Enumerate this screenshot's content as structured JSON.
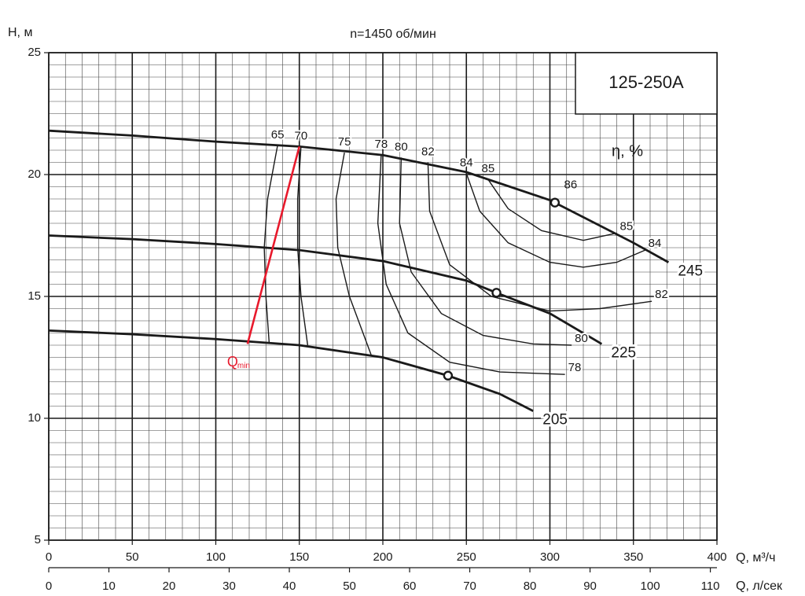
{
  "chart_data": {
    "type": "line",
    "title": "n=1450 об/мин",
    "model": "125-250А",
    "ylabel": "H, м",
    "xlabel": "Q, м³/ч",
    "x2label": "Q, л/сек",
    "efficiency_label": "η, %",
    "xlim": [
      0,
      400
    ],
    "xticks": [
      0,
      50,
      100,
      150,
      200,
      250,
      300,
      350,
      400
    ],
    "x2lim": [
      0,
      111.1
    ],
    "x2ticks": [
      0,
      10,
      20,
      30,
      40,
      50,
      60,
      70,
      80,
      90,
      100,
      110
    ],
    "ylim": [
      5,
      25
    ],
    "yticks": [
      5,
      10,
      15,
      20,
      25
    ],
    "grid": true,
    "series": [
      {
        "name": "245",
        "color": "#1a1a1a",
        "x": [
          0,
          50,
          100,
          150,
          200,
          250,
          300,
          350,
          371
        ],
        "values": [
          21.8,
          21.6,
          21.35,
          21.15,
          20.8,
          20.1,
          18.95,
          17.2,
          16.4
        ]
      },
      {
        "name": "225",
        "color": "#1a1a1a",
        "x": [
          0,
          50,
          100,
          150,
          200,
          250,
          268,
          300,
          331
        ],
        "values": [
          17.5,
          17.35,
          17.15,
          16.9,
          16.45,
          15.65,
          15.15,
          14.3,
          13.05
        ]
      },
      {
        "name": "205",
        "color": "#1a1a1a",
        "x": [
          0,
          50,
          100,
          150,
          200,
          239,
          270,
          290
        ],
        "values": [
          13.6,
          13.45,
          13.25,
          13.0,
          12.5,
          11.75,
          11.0,
          10.3
        ]
      }
    ],
    "efficiency_color": "#1a1a1a",
    "efficiency_curves": [
      {
        "name": "65",
        "x": [
          137,
          131,
          129,
          130,
          132
        ],
        "values": [
          21.2,
          19,
          17,
          15,
          13.05
        ]
      },
      {
        "name": "70",
        "x": [
          151,
          149,
          149,
          151,
          155
        ],
        "values": [
          21.15,
          19,
          17,
          15,
          13.0
        ]
      },
      {
        "name": "75",
        "x": [
          177,
          172,
          173,
          180,
          193
        ],
        "values": [
          20.9,
          19,
          17,
          15,
          12.6
        ]
      },
      {
        "name": "78",
        "x": [
          199,
          197,
          202,
          215,
          240,
          270,
          309
        ],
        "values": [
          20.8,
          18,
          15.5,
          13.5,
          12.3,
          11.9,
          11.8
        ]
      },
      {
        "name": "80",
        "x": [
          211,
          210,
          217,
          235,
          260,
          290,
          313
        ],
        "values": [
          20.7,
          18,
          16,
          14.3,
          13.4,
          13.05,
          13.0
        ]
      },
      {
        "name": "82",
        "x": [
          227,
          228,
          240,
          265,
          300,
          330,
          361
        ],
        "values": [
          20.5,
          18.5,
          16.3,
          15.0,
          14.4,
          14.5,
          14.8
        ]
      },
      {
        "name": "84",
        "x": [
          250,
          258,
          275,
          300,
          320,
          340,
          357
        ],
        "values": [
          20.05,
          18.5,
          17.2,
          16.4,
          16.2,
          16.4,
          16.9
        ]
      },
      {
        "name": "85",
        "x": [
          263,
          275,
          295,
          320,
          340
        ],
        "values": [
          19.8,
          18.6,
          17.7,
          17.3,
          17.6
        ]
      }
    ],
    "bep_label": "86",
    "bep_points": {
      "x": [
        303,
        268,
        239
      ],
      "values": [
        18.85,
        15.15,
        11.75
      ]
    },
    "qmin_line": {
      "color": "#e8192c",
      "x": [
        119,
        150
      ],
      "values": [
        13.05,
        21.15
      ]
    },
    "qmin_label": "Q",
    "qmin_subscript": "min"
  }
}
